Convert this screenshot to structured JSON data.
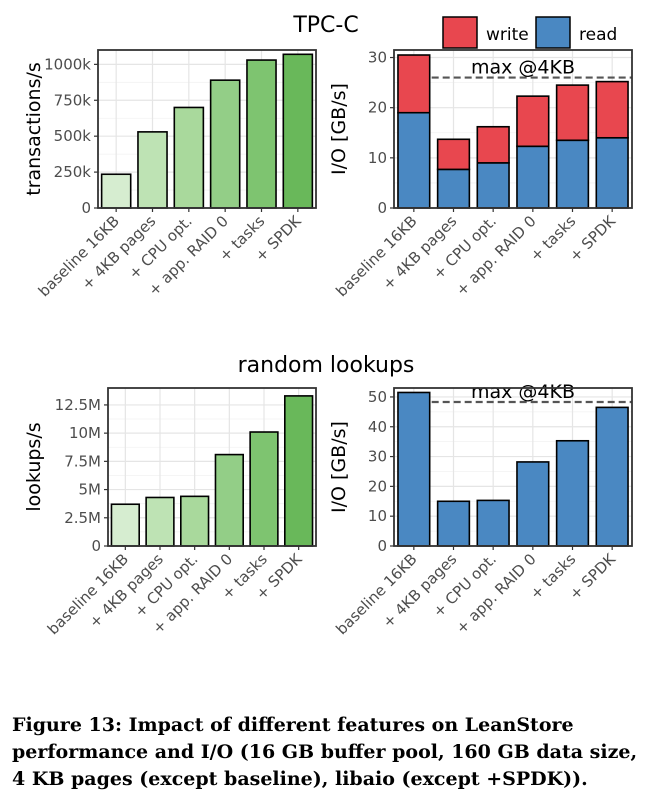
{
  "figure": {
    "section_titles": [
      "TPC-C",
      "random lookups"
    ],
    "caption": "Figure 13: Impact of different features on LeanStore performance and I/O (16 GB buffer pool, 160 GB data size, 4 KB pages (except baseline), libaio (except +SPDK))."
  },
  "legend": {
    "items": [
      "write",
      "read"
    ]
  },
  "colors": {
    "write": "#E8474F",
    "read": "#4A88C2",
    "throughput_bars": [
      "#D6EDD0",
      "#BEE3B4",
      "#A9D99C",
      "#93CE87",
      "#7EC470",
      "#69B85A"
    ],
    "grid": "#e5e5e5",
    "frame": "#333333"
  },
  "chart_data": [
    {
      "type": "bar",
      "section": "TPC-C",
      "categories": [
        "baseline 16KB",
        "+ 4KB pages",
        "+ CPU opt.",
        "+ app. RAID 0",
        "+ tasks",
        "+ SPDK"
      ],
      "values": [
        235000,
        530000,
        700000,
        890000,
        1030000,
        1070000
      ],
      "ylabel": "transactions/s",
      "ylim": [
        0,
        1100000
      ],
      "yticks": [
        0,
        250000,
        500000,
        750000,
        1000000
      ],
      "ytick_labels": [
        "0",
        "250k",
        "500k",
        "750k",
        "1000k"
      ],
      "grid": true
    },
    {
      "type": "bar",
      "stacked": true,
      "section": "TPC-C",
      "categories": [
        "baseline 16KB",
        "+ 4KB pages",
        "+ CPU opt.",
        "+ app. RAID 0",
        "+ tasks",
        "+ SPDK"
      ],
      "series": [
        {
          "name": "read",
          "values": [
            19,
            7.7,
            9,
            12.3,
            13.5,
            14
          ]
        },
        {
          "name": "write",
          "values": [
            11.5,
            6,
            7.2,
            10,
            11,
            11.2
          ]
        }
      ],
      "ylabel": "I/O [GB/s]",
      "ylim": [
        0,
        31.5
      ],
      "yticks": [
        0,
        10,
        20,
        30
      ],
      "ytick_labels": [
        "0",
        "10",
        "20",
        "30"
      ],
      "reference_line": {
        "label": "max @4KB",
        "value": 26
      },
      "legend": "top",
      "grid": true
    },
    {
      "type": "bar",
      "section": "random lookups",
      "categories": [
        "baseline 16KB",
        "+ 4KB pages",
        "+ CPU opt.",
        "+ app. RAID 0",
        "+ tasks",
        "+ SPDK"
      ],
      "values": [
        3700000,
        4300000,
        4400000,
        8100000,
        10100000,
        13300000
      ],
      "ylabel": "lookups/s",
      "ylim": [
        0,
        14000000
      ],
      "yticks": [
        0,
        2500000,
        5000000,
        7500000,
        10000000,
        12500000
      ],
      "ytick_labels": [
        "0",
        "2.5M",
        "5M",
        "7.5M",
        "10M",
        "12.5M"
      ],
      "grid": true
    },
    {
      "type": "bar",
      "section": "random lookups",
      "categories": [
        "baseline 16KB",
        "+ 4KB pages",
        "+ CPU opt.",
        "+ app. RAID 0",
        "+ tasks",
        "+ SPDK"
      ],
      "series": [
        {
          "name": "read",
          "values": [
            51.5,
            15,
            15.3,
            28.2,
            35.3,
            46.5
          ]
        }
      ],
      "ylabel": "I/O [GB/s]",
      "ylim": [
        0,
        53
      ],
      "yticks": [
        0,
        10,
        20,
        30,
        40,
        50
      ],
      "ytick_labels": [
        "0",
        "10",
        "20",
        "30",
        "40",
        "50"
      ],
      "reference_line": {
        "label": "max @4KB",
        "value": 48.3
      },
      "grid": true
    }
  ]
}
